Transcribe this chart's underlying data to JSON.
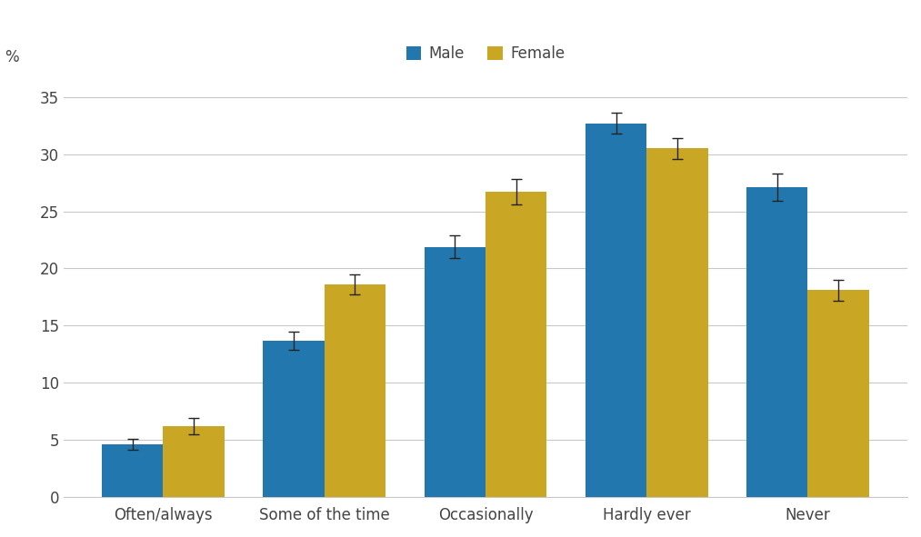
{
  "categories": [
    "Often/always",
    "Some of the time",
    "Occasionally",
    "Hardly ever",
    "Never"
  ],
  "male_values": [
    4.6,
    13.7,
    21.9,
    32.7,
    27.1
  ],
  "female_values": [
    6.2,
    18.6,
    26.7,
    30.5,
    18.1
  ],
  "male_errors": [
    0.5,
    0.8,
    1.0,
    0.9,
    1.2
  ],
  "female_errors": [
    0.7,
    0.9,
    1.1,
    0.9,
    0.9
  ],
  "male_color": "#2278AE",
  "female_color": "#C9A623",
  "background_color": "#ffffff",
  "percent_label": "%",
  "ylim": [
    0,
    37
  ],
  "yticks": [
    0,
    5,
    10,
    15,
    20,
    25,
    30,
    35
  ],
  "bar_width": 0.38,
  "legend_labels": [
    "Male",
    "Female"
  ],
  "grid_color": "#c8c8c8",
  "error_color": "#222222",
  "tick_fontsize": 12,
  "legend_fontsize": 12
}
